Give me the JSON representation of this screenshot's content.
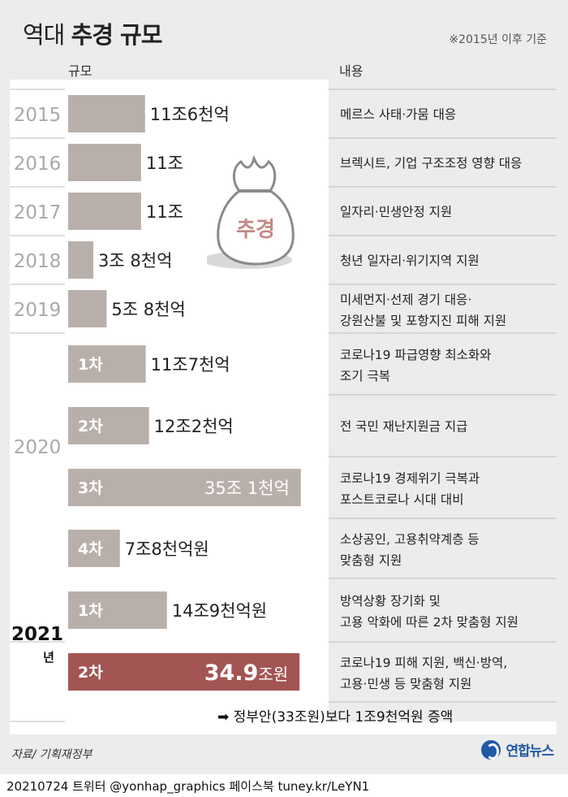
{
  "header": {
    "title_light": "역대",
    "title_bold": "추경 규모",
    "note": "※2015년 이후 기준",
    "col_scale": "규모",
    "col_content": "내용"
  },
  "bag_label": "추경",
  "footnote": "➡ 정부안(33조원)보다 1조9천억원 증액",
  "source": "자료/ 기획재정부",
  "logo": "연합뉴스",
  "bottom_line": "20210724 트위터 @yonhap_graphics  페이스북 tuney.kr/LeYN1",
  "colors": {
    "bar": "#b9afaa",
    "highlight": "#a35553",
    "year_label": "#a9a9a9",
    "content_bg": "#ececec"
  },
  "chart_data": {
    "type": "bar",
    "orientation": "horizontal",
    "unit": "조원",
    "rows": [
      {
        "year": "2015",
        "round": "",
        "value": 11.6,
        "value_label": "11조6천억",
        "desc": [
          "메르스 사태·가뭄 대응"
        ]
      },
      {
        "year": "2016",
        "round": "",
        "value": 11.0,
        "value_label": "11조",
        "desc": [
          "브렉시트, 기업 구조조정 영향 대응"
        ]
      },
      {
        "year": "2017",
        "round": "",
        "value": 11.0,
        "value_label": "11조",
        "desc": [
          "일자리·민생안정 지원"
        ]
      },
      {
        "year": "2018",
        "round": "",
        "value": 3.8,
        "value_label": "3조 8천억",
        "desc": [
          "청년 일자리·위기지역 지원"
        ]
      },
      {
        "year": "2019",
        "round": "",
        "value": 5.8,
        "value_label": "5조 8천억",
        "desc": [
          "미세먼지·선제 경기 대응·",
          "강원산불 및 포항지진 피해 지원"
        ]
      },
      {
        "year": "2020",
        "round": "1차",
        "value": 11.7,
        "value_label": "11조7천억",
        "desc": [
          "코로나19 파급영향 최소화와",
          "조기 극복"
        ]
      },
      {
        "year": "2020",
        "round": "2차",
        "value": 12.2,
        "value_label": "12조2천억",
        "desc": [
          "전 국민 재난지원금 지급"
        ]
      },
      {
        "year": "2020",
        "round": "3차",
        "value": 35.1,
        "value_label": "35조 1천억",
        "desc": [
          "코로나19 경제위기 극복과",
          "포스트코로나 시대 대비"
        ]
      },
      {
        "year": "2020",
        "round": "4차",
        "value": 7.8,
        "value_label": "7조8천억원",
        "desc": [
          "소상공인, 고용취약계층 등",
          "맞춤형 지원"
        ]
      },
      {
        "year": "2021",
        "round": "1차",
        "value": 14.9,
        "value_label": "14조9천억원",
        "desc": [
          "방역상황 장기화 및",
          "고용 악화에 따른 2차 맞춤형 지원"
        ]
      },
      {
        "year": "2021",
        "round": "2차",
        "value": 34.9,
        "value_label_num": "34.9",
        "value_label_unit": "조원",
        "highlight": true,
        "desc": [
          "코로나19 피해 지원, 백신·방역,",
          "고용·민생 등 맞춤형 지원"
        ]
      }
    ],
    "year_groups": [
      {
        "label": "2020",
        "sub": ""
      },
      {
        "label": "2021",
        "sub": "년"
      }
    ]
  }
}
